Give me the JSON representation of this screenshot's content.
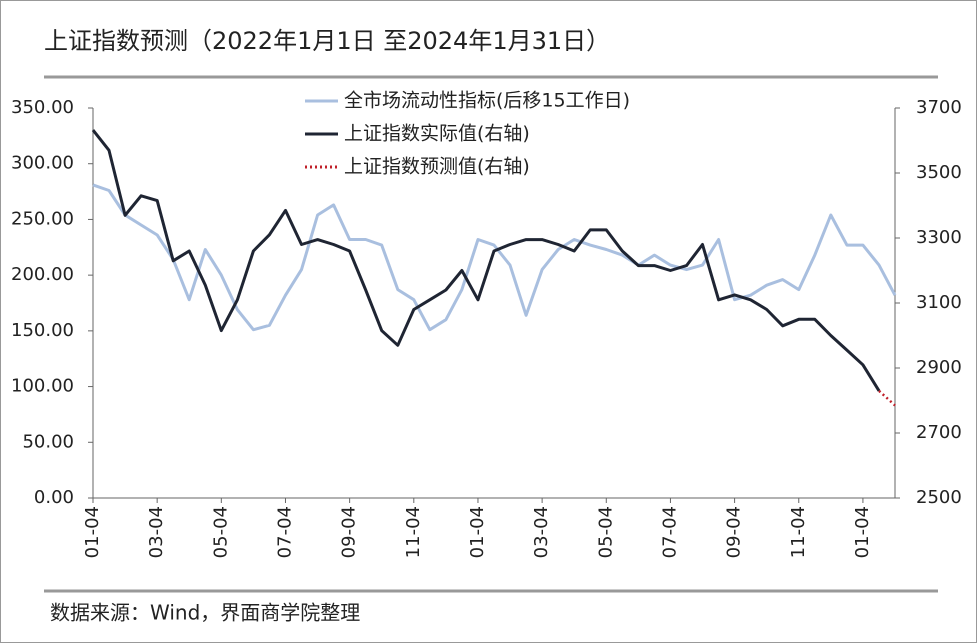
{
  "chart_data": {
    "type": "line",
    "title": "上证指数预测（2022年1月1日 至2024年1月31日）",
    "source": "数据来源：Wind，界面商学院整理",
    "legend": "top",
    "categories": [
      "01-04",
      null,
      null,
      null,
      "03-04",
      null,
      null,
      null,
      "05-04",
      null,
      null,
      null,
      "07-04",
      null,
      null,
      null,
      "09-04",
      null,
      null,
      null,
      "11-04",
      null,
      null,
      null,
      "01-04",
      null,
      null,
      null,
      "03-04",
      null,
      null,
      null,
      "05-04",
      null,
      null,
      null,
      "07-04",
      null,
      null,
      null,
      "09-04",
      null,
      null,
      null,
      "11-04",
      null,
      null,
      null,
      "01-04",
      null,
      null
    ],
    "ylim": [
      0,
      350
    ],
    "yticks": [
      {
        "value": 0,
        "label": "0.00"
      },
      {
        "value": 50,
        "label": "50.00"
      },
      {
        "value": 100,
        "label": "100.00"
      },
      {
        "value": 150,
        "label": "150.00"
      },
      {
        "value": 200,
        "label": "200.00"
      },
      {
        "value": 250,
        "label": "250.00"
      },
      {
        "value": 300,
        "label": "300.00"
      },
      {
        "value": 350,
        "label": "350.00"
      }
    ],
    "y2lim": [
      2500,
      3700
    ],
    "y2ticks": [
      2500,
      2700,
      2900,
      3100,
      3300,
      3500,
      3700
    ],
    "series": [
      {
        "name": "全市场流动性指标(后移15工作日)",
        "color": "#a9bfdf",
        "style": "solid",
        "values": [
          281,
          276,
          254,
          245,
          236,
          214,
          178,
          223,
          200,
          169,
          151,
          155,
          182,
          205,
          254,
          263,
          232,
          232,
          227,
          187,
          178,
          151,
          160,
          187,
          232,
          227,
          209,
          164,
          205,
          223,
          232,
          227,
          223,
          218,
          209,
          218,
          209,
          205,
          209,
          232,
          178,
          182,
          191,
          196,
          187,
          218,
          254,
          227,
          227,
          209,
          182
        ]
      },
      {
        "name": "上证指数实际值(右轴)",
        "color": "#1f2533",
        "style": "solid",
        "axis": "y2",
        "values": [
          3632,
          3570,
          3370,
          3430,
          3415,
          3230,
          3260,
          3155,
          3015,
          3110,
          3260,
          3310,
          3385,
          3280,
          3295,
          3280,
          3260,
          3140,
          3015,
          2970,
          3080,
          3110,
          3140,
          3200,
          3110,
          3260,
          3280,
          3295,
          3295,
          3280,
          3260,
          3325,
          3325,
          3260,
          3215,
          3215,
          3200,
          3215,
          3280,
          3110,
          3125,
          3110,
          3080,
          3030,
          3050,
          3050,
          3000,
          2955,
          2910,
          2830,
          null
        ]
      },
      {
        "name": "上证指数预测值(右轴)",
        "color": "#c0202a",
        "style": "dotted",
        "axis": "y2",
        "values": [
          null,
          null,
          null,
          null,
          null,
          null,
          null,
          null,
          null,
          null,
          null,
          null,
          null,
          null,
          null,
          null,
          null,
          null,
          null,
          null,
          null,
          null,
          null,
          null,
          null,
          null,
          null,
          null,
          null,
          null,
          null,
          null,
          null,
          null,
          null,
          null,
          null,
          null,
          null,
          null,
          null,
          null,
          null,
          null,
          null,
          null,
          null,
          null,
          null,
          2830,
          2785
        ]
      }
    ]
  }
}
